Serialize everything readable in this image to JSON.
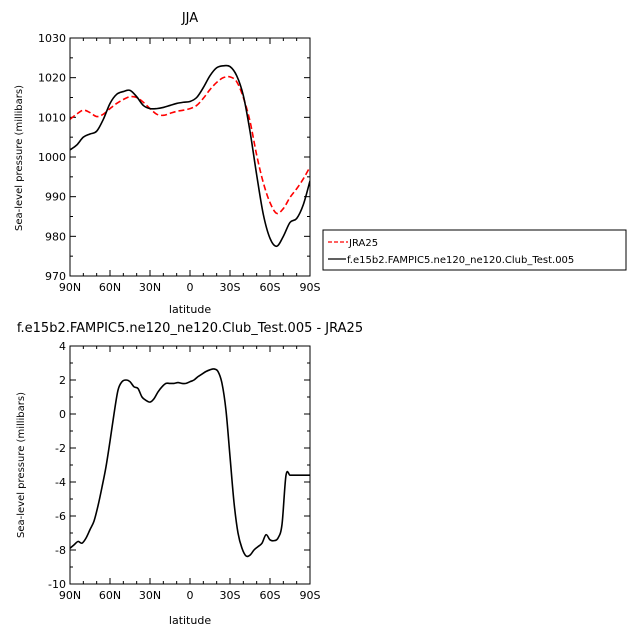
{
  "chart_data": [
    {
      "type": "line",
      "title": "JJA",
      "xlabel": "latitude",
      "ylabel": "Sea-level pressure (millibars)",
      "x_ticks": [
        "90N",
        "60N",
        "30N",
        "0",
        "30S",
        "60S",
        "90S"
      ],
      "x_tick_values": [
        -90,
        -60,
        -30,
        0,
        30,
        60,
        90
      ],
      "xlim": [
        -90,
        90
      ],
      "ylim": [
        970,
        1030
      ],
      "y_ticks": [
        970,
        980,
        990,
        1000,
        1010,
        1020,
        1030
      ],
      "legend_position": "right",
      "series": [
        {
          "name": "JRA25",
          "color": "#ff0000",
          "dash": "dashed",
          "x": [
            -90,
            -85,
            -80,
            -75,
            -70,
            -65,
            -60,
            -55,
            -50,
            -45,
            -40,
            -35,
            -30,
            -25,
            -20,
            -15,
            -10,
            -5,
            0,
            5,
            10,
            15,
            20,
            25,
            30,
            35,
            40,
            45,
            50,
            55,
            60,
            65,
            70,
            75,
            80,
            85,
            90
          ],
          "values": [
            1009.5,
            1010.8,
            1011.8,
            1011.2,
            1010.2,
            1010.8,
            1012.2,
            1013.5,
            1014.5,
            1015.2,
            1015.0,
            1013.8,
            1012.2,
            1010.8,
            1010.5,
            1011.0,
            1011.5,
            1011.8,
            1012.2,
            1013.0,
            1014.8,
            1017.0,
            1018.8,
            1020.0,
            1020.2,
            1019.0,
            1015.0,
            1009.0,
            1000.5,
            993.5,
            988.5,
            985.8,
            987.0,
            989.8,
            992.0,
            994.5,
            997.5
          ]
        },
        {
          "name": "f.e15b2.FAMPIC5.ne120_ne120.Club_Test.005",
          "color": "#000000",
          "dash": "solid",
          "x": [
            -90,
            -85,
            -80,
            -75,
            -70,
            -65,
            -60,
            -55,
            -50,
            -45,
            -40,
            -35,
            -30,
            -25,
            -20,
            -15,
            -10,
            -5,
            0,
            5,
            10,
            15,
            20,
            25,
            30,
            35,
            40,
            45,
            50,
            55,
            60,
            65,
            70,
            75,
            80,
            85,
            90
          ],
          "values": [
            1001.8,
            1003.0,
            1005.0,
            1005.8,
            1006.5,
            1009.5,
            1013.5,
            1015.8,
            1016.5,
            1016.8,
            1015.2,
            1013.0,
            1012.2,
            1012.2,
            1012.5,
            1013.0,
            1013.5,
            1013.8,
            1014.0,
            1015.0,
            1017.5,
            1020.5,
            1022.5,
            1023.0,
            1022.8,
            1020.5,
            1015.5,
            1006.5,
            995.5,
            985.5,
            979.5,
            977.5,
            980.0,
            983.5,
            984.5,
            988.0,
            994.0
          ]
        }
      ]
    },
    {
      "type": "line",
      "title": "f.e15b2.FAMPIC5.ne120_ne120.Club_Test.005 - JRA25",
      "xlabel": "latitude",
      "ylabel": "Sea-level pressure (millibars)",
      "x_ticks": [
        "90N",
        "60N",
        "30N",
        "0",
        "30S",
        "60S",
        "90S"
      ],
      "x_tick_values": [
        -90,
        -60,
        -30,
        0,
        30,
        60,
        90
      ],
      "xlim": [
        -90,
        90
      ],
      "ylim": [
        -10,
        4
      ],
      "y_ticks": [
        -10,
        -8,
        -6,
        -4,
        -2,
        0,
        2,
        4
      ],
      "series": [
        {
          "color": "#000000",
          "dash": "solid",
          "x": [
            -90,
            -87,
            -84,
            -81,
            -78,
            -75,
            -72,
            -69,
            -66,
            -63,
            -60,
            -57,
            -54,
            -51,
            -48,
            -45,
            -42,
            -39,
            -36,
            -33,
            -30,
            -27,
            -24,
            -21,
            -18,
            -15,
            -12,
            -9,
            -6,
            -3,
            0,
            3,
            6,
            9,
            12,
            15,
            18,
            21,
            24,
            27,
            30,
            33,
            36,
            39,
            42,
            45,
            48,
            51,
            54,
            57,
            60,
            63,
            66,
            69,
            72,
            75,
            78,
            81,
            84,
            87,
            88.5,
            90
          ],
          "values": [
            -7.9,
            -7.7,
            -7.5,
            -7.6,
            -7.3,
            -6.8,
            -6.3,
            -5.4,
            -4.3,
            -3.1,
            -1.6,
            0.0,
            1.4,
            1.9,
            2.0,
            1.9,
            1.6,
            1.5,
            1.0,
            0.8,
            0.7,
            0.9,
            1.3,
            1.6,
            1.8,
            1.8,
            1.8,
            1.85,
            1.8,
            1.8,
            1.9,
            2.0,
            2.2,
            2.35,
            2.5,
            2.6,
            2.65,
            2.5,
            1.8,
            0.2,
            -2.5,
            -5.2,
            -7.0,
            -7.9,
            -8.35,
            -8.3,
            -8.0,
            -7.8,
            -7.6,
            -7.1,
            -7.4,
            -7.45,
            -7.3,
            -6.5,
            -3.6,
            -3.6,
            -3.6,
            -3.6,
            -3.6,
            -3.6,
            -3.6,
            -3.6
          ]
        }
      ]
    }
  ]
}
